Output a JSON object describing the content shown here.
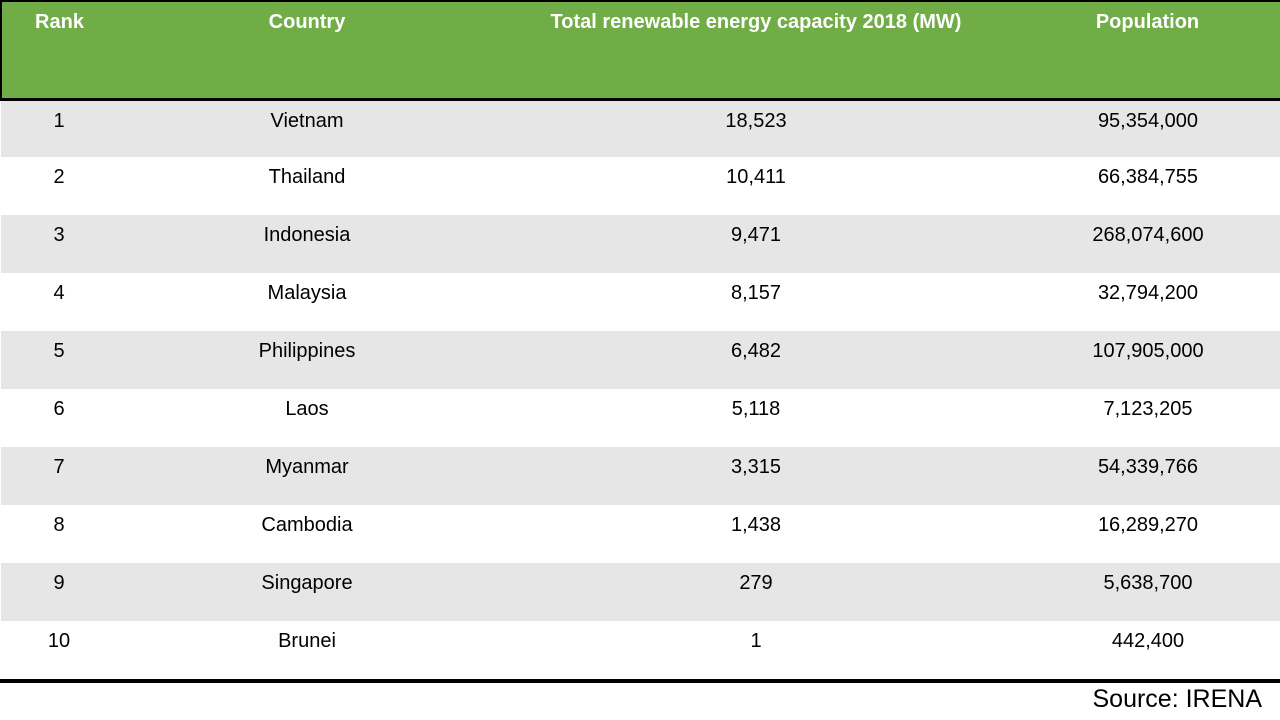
{
  "table": {
    "columns": [
      "Rank",
      "Country",
      "Total renewable energy capacity 2018 (MW)",
      "Population"
    ],
    "rows": [
      [
        "1",
        "Vietnam",
        "18,523",
        "95,354,000"
      ],
      [
        "2",
        "Thailand",
        "10,411",
        "66,384,755"
      ],
      [
        "3",
        "Indonesia",
        "9,471",
        "268,074,600"
      ],
      [
        "4",
        "Malaysia",
        "8,157",
        "32,794,200"
      ],
      [
        "5",
        "Philippines",
        "6,482",
        "107,905,000"
      ],
      [
        "6",
        "Laos",
        "5,118",
        "7,123,205"
      ],
      [
        "7",
        "Myanmar",
        "3,315",
        "54,339,766"
      ],
      [
        "8",
        "Cambodia",
        "1,438",
        "16,289,270"
      ],
      [
        "9",
        "Singapore",
        "279",
        "5,638,700"
      ],
      [
        "10",
        "Brunei",
        "1",
        "442,400"
      ]
    ]
  },
  "source_note": "Source: IRENA",
  "colors": {
    "header_bg": "#70ad47",
    "header_text": "#ffffff",
    "row_alt_bg": "#e6e6e6",
    "row_bg": "#ffffff",
    "rule": "#000000"
  },
  "chart_data": {
    "type": "table",
    "title": "Total renewable energy capacity 2018 by country",
    "columns": [
      "Rank",
      "Country",
      "Total renewable energy capacity 2018 (MW)",
      "Population"
    ],
    "categories": [
      "Vietnam",
      "Thailand",
      "Indonesia",
      "Malaysia",
      "Philippines",
      "Laos",
      "Myanmar",
      "Cambodia",
      "Singapore",
      "Brunei"
    ],
    "series": [
      {
        "name": "Rank",
        "values": [
          1,
          2,
          3,
          4,
          5,
          6,
          7,
          8,
          9,
          10
        ]
      },
      {
        "name": "Total renewable energy capacity 2018 (MW)",
        "values": [
          18523,
          10411,
          9471,
          8157,
          6482,
          5118,
          3315,
          1438,
          279,
          1
        ]
      },
      {
        "name": "Population",
        "values": [
          95354000,
          66384755,
          268074600,
          32794200,
          107905000,
          7123205,
          54339766,
          16289270,
          5638700,
          442400
        ]
      }
    ],
    "source": "Source: IRENA"
  }
}
